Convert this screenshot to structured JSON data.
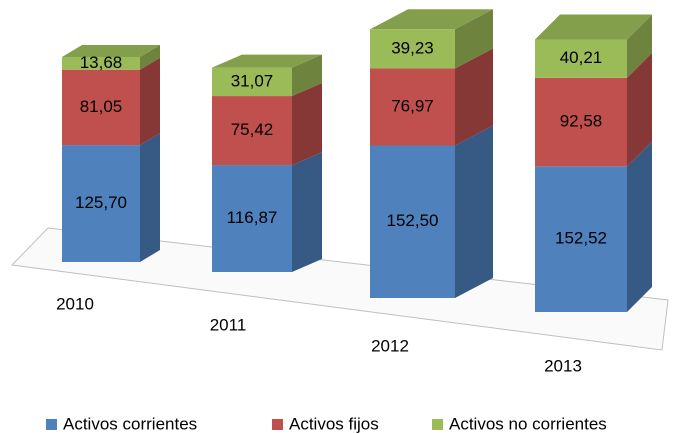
{
  "chart_data": {
    "type": "bar3d_stacked",
    "categories": [
      "2010",
      "2011",
      "2012",
      "2013"
    ],
    "series": [
      {
        "name": "Activos corrientes",
        "color": "#4f81bd",
        "values": [
          125.7,
          116.87,
          152.5,
          152.52
        ],
        "value_labels": [
          "125,70",
          "116,87",
          "152,50",
          "152,52"
        ]
      },
      {
        "name": "Activos fijos",
        "color": "#c0504d",
        "values": [
          81.05,
          75.42,
          76.97,
          92.58
        ],
        "value_labels": [
          "81,05",
          "75,42",
          "76,97",
          "92,58"
        ]
      },
      {
        "name": "Activos no corrientes",
        "color": "#9bbb59",
        "values": [
          13.68,
          31.07,
          39.23,
          40.21
        ],
        "value_labels": [
          "13,68",
          "31,07",
          "39,23",
          "40,21"
        ]
      }
    ],
    "legend": "bottom"
  }
}
